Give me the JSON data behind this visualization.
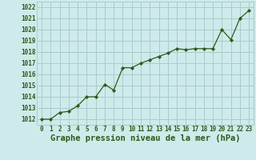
{
  "x": [
    0,
    1,
    2,
    3,
    4,
    5,
    6,
    7,
    8,
    9,
    10,
    11,
    12,
    13,
    14,
    15,
    16,
    17,
    18,
    19,
    20,
    21,
    22,
    23
  ],
  "y": [
    1012.0,
    1012.0,
    1012.6,
    1012.7,
    1013.2,
    1014.0,
    1014.0,
    1015.1,
    1014.6,
    1016.6,
    1016.6,
    1017.0,
    1017.3,
    1017.6,
    1017.9,
    1018.3,
    1018.2,
    1018.3,
    1018.3,
    1018.3,
    1020.0,
    1019.1,
    1021.0,
    1021.7
  ],
  "line_color": "#2d5a1b",
  "marker": "D",
  "marker_size": 2.2,
  "bg_color": "#ceeaea",
  "grid_color": "#aacccc",
  "xlabel": "Graphe pression niveau de la mer (hPa)",
  "xlabel_color": "#2d5a1b",
  "xlabel_fontsize": 7.5,
  "ylabel_ticks": [
    1012,
    1013,
    1014,
    1015,
    1016,
    1017,
    1018,
    1019,
    1020,
    1021,
    1022
  ],
  "xlim": [
    -0.5,
    23.5
  ],
  "ylim": [
    1011.5,
    1022.5
  ],
  "xticks": [
    0,
    1,
    2,
    3,
    4,
    5,
    6,
    7,
    8,
    9,
    10,
    11,
    12,
    13,
    14,
    15,
    16,
    17,
    18,
    19,
    20,
    21,
    22,
    23
  ],
  "tick_fontsize": 5.5,
  "tick_color": "#2d5a1b",
  "line_width": 0.9
}
